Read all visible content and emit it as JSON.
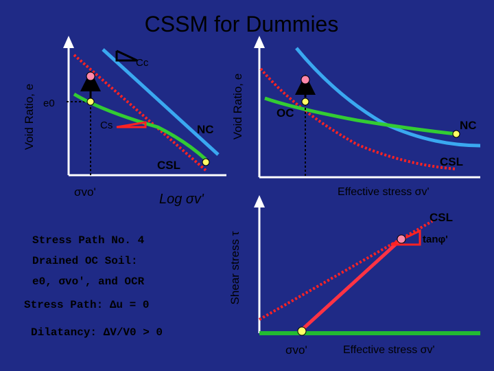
{
  "title": "CSSM for Dummies",
  "colors": {
    "background": "#1f2a86",
    "title_text": "#000000",
    "text": "#000000",
    "axes": "#000000",
    "nc_line": "#3aa8f0",
    "cs_line": "#33cc33",
    "csl_dotted": "#ff2222",
    "stress_path": "#ff3344",
    "point_fill": "#ff88aa",
    "point_yellow": "#ffff66",
    "tangent_triangle": "#ff2222",
    "bottom_axis_green": "#22bb33"
  },
  "left_diagram": {
    "y_axis_label": "Void Ratio, e",
    "cc_label": "Cc",
    "cs_label": "Cs",
    "e0_label": "e0",
    "nc_label": "NC",
    "csl_label": "CSL",
    "sigma_vo_label": "σvo'",
    "x_axis_label": "Log σv'"
  },
  "right_top_diagram": {
    "y_axis_label": "Void Ratio, e",
    "oc_label": "OC",
    "nc_label": "NC",
    "csl_label": "CSL",
    "x_axis_label": "Effective stress σv'"
  },
  "right_bottom_diagram": {
    "y_axis_label": "Shear stress τ",
    "csl_label": "CSL",
    "tanphi_label": "tanφ'",
    "sigma_vo_label": "σvo'",
    "x_axis_label": "Effective stress σv'"
  },
  "notes": {
    "line1": "Stress Path No. 4",
    "line2": "Drained OC Soil:",
    "line3": "e0, σvo', and OCR",
    "line4": "Stress Path: Δu = 0",
    "line5": "Dilatancy: ΔV/V0 > 0"
  }
}
